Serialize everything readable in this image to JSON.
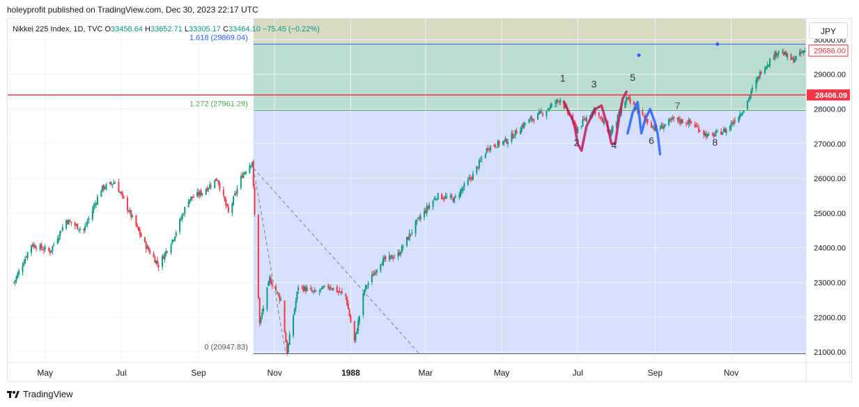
{
  "header": {
    "published_text": "holeyprofit published on TradingView.com, Dec 30, 2023 22:17 UTC"
  },
  "legend": {
    "symbol": "Nikkei 225 Index, 1D, TVC",
    "open_label": "O",
    "open": "33458.64",
    "high_label": "H",
    "high": "33652.71",
    "low_label": "L",
    "low": "33305.17",
    "close_label": "C",
    "close": "33464.10",
    "change": "−75.45 (−0.22%)"
  },
  "currency_button": "JPY",
  "footer": {
    "brand": "TradingView"
  },
  "colors": {
    "up": "#089981",
    "down": "#f23645",
    "blue_line": "#2962ff",
    "red_line": "#f23645",
    "green_line": "#4caf50"
  },
  "price_labels": {
    "current": "29686.00",
    "red_level": "28406.09"
  },
  "fib_labels": [
    "1.618 (29869.04)",
    "1.272 (27961.29)",
    "0 (20947.83)"
  ],
  "wave_labels": [
    "1",
    "2",
    "3",
    "4",
    "5",
    "6",
    "7",
    "8"
  ],
  "chart_data": {
    "type": "candlestick",
    "y_axis": {
      "ticks": [
        "30000.00",
        "29000.00",
        "28000.00",
        "27000.00",
        "26000.00",
        "25000.00",
        "24000.00",
        "23000.00",
        "22000.00",
        "21000.00"
      ],
      "range": [
        20700,
        30600
      ]
    },
    "x_axis": {
      "ticks": [
        "May",
        "Jul",
        "Sep",
        "Nov",
        "1988",
        "Mar",
        "May",
        "Jul",
        "Sep",
        "Nov"
      ],
      "range": [
        "1987-04",
        "1988-12"
      ]
    },
    "fib_levels": [
      {
        "ratio": 1.618,
        "value": 29869.04
      },
      {
        "ratio": 1.272,
        "value": 27961.29
      },
      {
        "ratio": 0,
        "value": 20947.83
      }
    ],
    "horizontal_levels": [
      28406.09
    ],
    "last_price": 29686.0,
    "series": [
      {
        "close_path": [
          [
            "1987-04-06",
            23000
          ],
          [
            "1987-04-20",
            24100
          ],
          [
            "1987-05-05",
            23900
          ],
          [
            "1987-05-18",
            24800
          ],
          [
            "1987-06-01",
            24500
          ],
          [
            "1987-06-15",
            25700
          ],
          [
            "1987-06-26",
            25900
          ],
          [
            "1987-07-08",
            25000
          ],
          [
            "1987-07-20",
            24100
          ],
          [
            "1987-07-31",
            23500
          ],
          [
            "1987-08-12",
            24300
          ],
          [
            "1987-08-24",
            25400
          ],
          [
            "1987-09-04",
            25600
          ],
          [
            "1987-09-16",
            26000
          ],
          [
            "1987-09-25",
            25000
          ],
          [
            "1987-10-06",
            26100
          ],
          [
            "1987-10-14",
            26500
          ],
          [
            "1987-10-20",
            21800
          ],
          [
            "1987-10-28",
            23100
          ],
          [
            "1987-11-06",
            22500
          ],
          [
            "1987-11-11",
            21000
          ],
          [
            "1987-11-20",
            22900
          ],
          [
            "1987-12-03",
            22700
          ],
          [
            "1987-12-15",
            22900
          ],
          [
            "1987-12-28",
            22600
          ],
          [
            "1988-01-04",
            21300
          ],
          [
            "1988-01-12",
            22800
          ],
          [
            "1988-01-25",
            23600
          ],
          [
            "1988-02-08",
            23800
          ],
          [
            "1988-02-24",
            24800
          ],
          [
            "1988-03-10",
            25500
          ],
          [
            "1988-03-24",
            25400
          ],
          [
            "1988-04-08",
            26100
          ],
          [
            "1988-04-20",
            26900
          ],
          [
            "1988-05-06",
            27100
          ],
          [
            "1988-05-20",
            27600
          ],
          [
            "1988-06-03",
            27900
          ],
          [
            "1988-06-17",
            28300
          ],
          [
            "1988-06-30",
            27400
          ],
          [
            "1988-07-14",
            28000
          ],
          [
            "1988-07-27",
            27300
          ],
          [
            "1988-08-09",
            28300
          ],
          [
            "1988-08-22",
            27800
          ],
          [
            "1988-09-02",
            27400
          ],
          [
            "1988-09-16",
            27700
          ],
          [
            "1988-09-30",
            27600
          ],
          [
            "1988-10-14",
            27200
          ],
          [
            "1988-10-28",
            27400
          ],
          [
            "1988-11-11",
            28000
          ],
          [
            "1988-11-25",
            29100
          ],
          [
            "1988-12-09",
            29700
          ],
          [
            "1988-12-20",
            29400
          ],
          [
            "1988-12-30",
            29686
          ]
        ]
      }
    ]
  }
}
